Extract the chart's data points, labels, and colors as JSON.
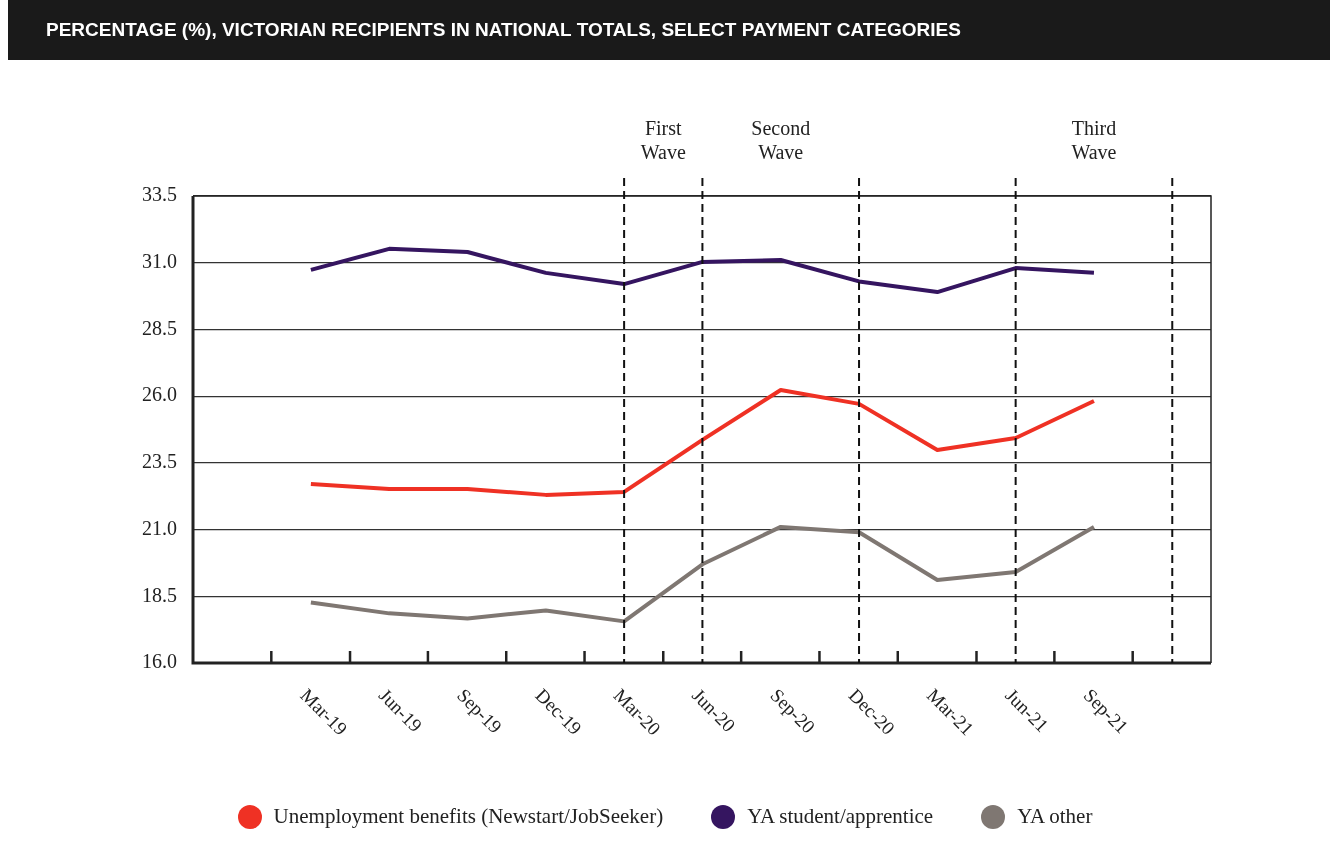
{
  "chart_data": {
    "type": "line",
    "title": "PERCENTAGE (%), VICTORIAN RECIPIENTS IN NATIONAL TOTALS, SELECT PAYMENT CATEGORIES",
    "x": [
      "2019-03",
      "2019-06",
      "2019-09",
      "2019-12",
      "2020-03",
      "2020-06",
      "2020-09",
      "2020-12",
      "2021-03",
      "2021-06",
      "2021-09"
    ],
    "series": [
      {
        "name": "Unemployment benefits (Newstart/JobSeeker)",
        "color": "#ef3124",
        "values": [
          22.71,
          22.52,
          22.52,
          22.3,
          22.41,
          24.36,
          26.23,
          25.71,
          23.98,
          24.43,
          25.82
        ]
      },
      {
        "name": "YA student/apprentice",
        "color": "#351560",
        "values": [
          30.73,
          31.52,
          31.4,
          30.62,
          30.2,
          31.03,
          31.1,
          30.3,
          29.9,
          30.8,
          30.62
        ]
      },
      {
        "name": "YA other",
        "color": "#7f7772",
        "values": [
          18.27,
          17.86,
          17.67,
          17.97,
          17.56,
          19.7,
          21.1,
          20.9,
          19.11,
          19.41,
          21.1
        ]
      }
    ],
    "xlim": [
      "2018-10-16",
      "2022-01-16"
    ],
    "xticks": [
      {
        "value": "2019-01-16",
        "label": null
      },
      {
        "value": "2019-03",
        "label": "Mar-19"
      },
      {
        "value": "2019-04-16",
        "label": null
      },
      {
        "value": "2019-06",
        "label": "Jun-19"
      },
      {
        "value": "2019-07-16",
        "label": null
      },
      {
        "value": "2019-09",
        "label": "Sep-19"
      },
      {
        "value": "2019-10-16",
        "label": null
      },
      {
        "value": "2019-12",
        "label": "Dec-19"
      },
      {
        "value": "2020-01-16",
        "label": null
      },
      {
        "value": "2020-03",
        "label": "Mar-20"
      },
      {
        "value": "2020-04-16",
        "label": null
      },
      {
        "value": "2020-06",
        "label": "Jun-20"
      },
      {
        "value": "2020-07-16",
        "label": null
      },
      {
        "value": "2020-09",
        "label": "Sep-20"
      },
      {
        "value": "2020-10-16",
        "label": null
      },
      {
        "value": "2020-12",
        "label": "Dec-20"
      },
      {
        "value": "2021-01-16",
        "label": null
      },
      {
        "value": "2021-03",
        "label": "Mar-21"
      },
      {
        "value": "2021-04-16",
        "label": null
      },
      {
        "value": "2021-06",
        "label": "Jun-21"
      },
      {
        "value": "2021-07-16",
        "label": null
      },
      {
        "value": "2021-09",
        "label": "Sep-21"
      },
      {
        "value": "2021-10-16",
        "label": null
      }
    ],
    "ylim": [
      16,
      33.5
    ],
    "yticks": [
      {
        "value": 16,
        "label": "16.0"
      },
      {
        "value": 18.5,
        "label": "18.5"
      },
      {
        "value": 21,
        "label": "21.0"
      },
      {
        "value": 23.5,
        "label": "23.5"
      },
      {
        "value": 26,
        "label": "26.0"
      },
      {
        "value": 28.5,
        "label": "28.5"
      },
      {
        "value": 31,
        "label": "31.0"
      },
      {
        "value": 33.5,
        "label": "33.5"
      }
    ],
    "ref_lines": [
      {
        "axis": "x",
        "value": "2020-03",
        "label": "First Wave",
        "line_style": "dashed"
      },
      {
        "axis": "x",
        "value": "2020-06",
        "label": "Second Wave",
        "line_style": "dashed"
      },
      {
        "axis": "x",
        "value": "2020-12",
        "line_style": "dashed"
      },
      {
        "axis": "x",
        "value": "2021-06",
        "label": "Third Wave",
        "line_style": "dashed"
      },
      {
        "axis": "x",
        "value": "2021-12",
        "line_style": "dashed"
      }
    ],
    "grid": "y",
    "legend": "bottom"
  }
}
